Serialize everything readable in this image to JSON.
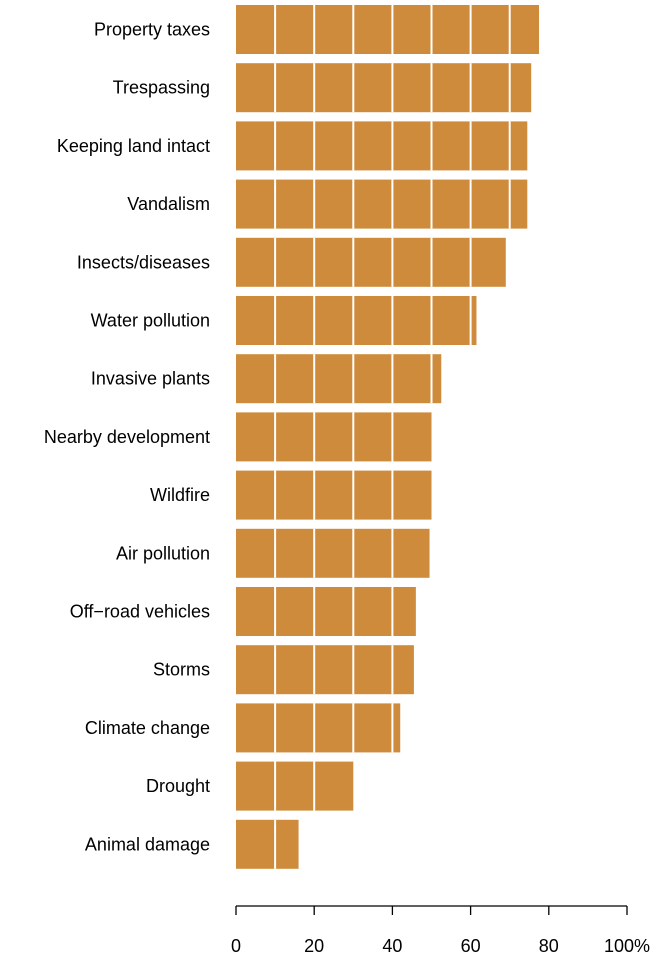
{
  "chart_data": {
    "type": "bar",
    "orientation": "horizontal",
    "categories": [
      "Property taxes",
      "Trespassing",
      "Keeping land intact",
      "Vandalism",
      "Insects/diseases",
      "Water pollution",
      "Invasive plants",
      "Nearby development",
      "Wildfire",
      "Air pollution",
      "Off−road vehicles",
      "Storms",
      "Climate change",
      "Drought",
      "Animal damage"
    ],
    "values": [
      77.5,
      75.5,
      74.5,
      74.5,
      69,
      61.5,
      52.5,
      50,
      50,
      49.5,
      46,
      45.5,
      42,
      30,
      16
    ],
    "xlim": [
      0,
      100
    ],
    "xticks": [
      0,
      20,
      40,
      60,
      80,
      100
    ],
    "xtick_labels": [
      "0",
      "20",
      "40",
      "60",
      "80",
      "100%"
    ],
    "grid": true,
    "grid_step": 10,
    "title": "",
    "xlabel": "",
    "ylabel": "",
    "bar_color": "#cd8b3b",
    "grid_color": "#ffffff"
  }
}
